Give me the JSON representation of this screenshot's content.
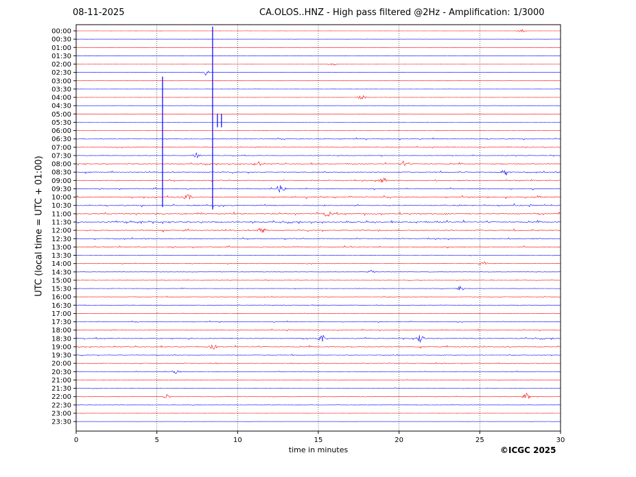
{
  "header": {
    "date": "08-11-2025",
    "title": "CA.OLOS..HNZ - High pass filtered @2Hz - Amplification: 1/3000"
  },
  "footer": {
    "copyright": "©ICGC 2025"
  },
  "chart_data": {
    "type": "line",
    "title": "CA.OLOS..HNZ - High pass filtered @2Hz - Amplification: 1/3000",
    "xlabel": "time in minutes",
    "ylabel": "UTC (local time = UTC + 01:00)",
    "xlim": [
      0,
      30
    ],
    "x_ticks": [
      0,
      5,
      10,
      15,
      20,
      25,
      30
    ],
    "vertical_gridlines": [
      5,
      10,
      15,
      20,
      25
    ],
    "grid": "vertical dotted",
    "row_labels": [
      "00:00",
      "00:30",
      "01:00",
      "01:30",
      "02:00",
      "02:30",
      "03:00",
      "03:30",
      "04:00",
      "04:30",
      "05:00",
      "05:30",
      "06:00",
      "06:30",
      "07:00",
      "07:30",
      "08:00",
      "08:30",
      "09:00",
      "09:30",
      "10:00",
      "10:30",
      "11:00",
      "11:30",
      "12:00",
      "12:30",
      "13:00",
      "13:30",
      "14:00",
      "14:30",
      "15:00",
      "15:30",
      "16:00",
      "16:30",
      "17:00",
      "17:30",
      "18:00",
      "18:30",
      "19:00",
      "19:30",
      "20:00",
      "20:30",
      "21:00",
      "21:30",
      "22:00",
      "22:30",
      "23:00",
      "23:30"
    ],
    "trace_colors": [
      "#ff0000",
      "#0000ff"
    ],
    "noise_level": [
      0.05,
      0.05,
      0.05,
      0.05,
      0.05,
      0.05,
      0.05,
      0.05,
      0.05,
      0.05,
      0.05,
      0.05,
      0.12,
      0.25,
      0.2,
      0.2,
      0.3,
      0.3,
      0.3,
      0.3,
      0.35,
      0.35,
      0.4,
      0.4,
      0.35,
      0.3,
      0.3,
      0.15,
      0.15,
      0.12,
      0.15,
      0.15,
      0.2,
      0.15,
      0.15,
      0.2,
      0.25,
      0.3,
      0.3,
      0.2,
      0.2,
      0.2,
      0.15,
      0.15,
      0.15,
      0.1,
      0.08,
      0.05
    ],
    "events": [
      {
        "row": 0,
        "minute": 27.6,
        "amplitude": 0.3
      },
      {
        "row": 4,
        "minute": 15.9,
        "amplitude": 0.4
      },
      {
        "row": 5,
        "minute": 8.0,
        "amplitude": 0.6
      },
      {
        "row": 8,
        "minute": 17.7,
        "amplitude": 0.5
      },
      {
        "row": 15,
        "minute": 7.5,
        "amplitude": 0.6
      },
      {
        "row": 16,
        "minute": 11.2,
        "amplitude": 0.6
      },
      {
        "row": 16,
        "minute": 20.3,
        "amplitude": 0.6
      },
      {
        "row": 17,
        "minute": 26.6,
        "amplitude": 0.8
      },
      {
        "row": 18,
        "minute": 19.0,
        "amplitude": 0.6
      },
      {
        "row": 19,
        "minute": 12.7,
        "amplitude": 1.0
      },
      {
        "row": 20,
        "minute": 6.9,
        "amplitude": 0.6
      },
      {
        "row": 22,
        "minute": 15.6,
        "amplitude": 0.7
      },
      {
        "row": 24,
        "minute": 11.5,
        "amplitude": 0.6
      },
      {
        "row": 28,
        "minute": 25.2,
        "amplitude": 0.5
      },
      {
        "row": 29,
        "minute": 18.3,
        "amplitude": 0.5
      },
      {
        "row": 31,
        "minute": 23.8,
        "amplitude": 0.6
      },
      {
        "row": 37,
        "minute": 15.2,
        "amplitude": 0.8
      },
      {
        "row": 37,
        "minute": 21.3,
        "amplitude": 0.8
      },
      {
        "row": 38,
        "minute": 8.5,
        "amplitude": 0.6
      },
      {
        "row": 41,
        "minute": 6.2,
        "amplitude": 0.5
      },
      {
        "row": 44,
        "minute": 5.6,
        "amplitude": 0.5
      },
      {
        "row": 44,
        "minute": 27.9,
        "amplitude": 0.7
      }
    ],
    "spikes": [
      {
        "minute": 5.35,
        "row_start": 5.5,
        "row_end": 21.2
      },
      {
        "minute": 8.45,
        "row_start": -0.5,
        "row_end": 21.5
      },
      {
        "minute": 8.75,
        "row_start": 10.0,
        "row_end": 11.6
      },
      {
        "minute": 9.0,
        "row_start": 10.0,
        "row_end": 11.6
      }
    ]
  }
}
